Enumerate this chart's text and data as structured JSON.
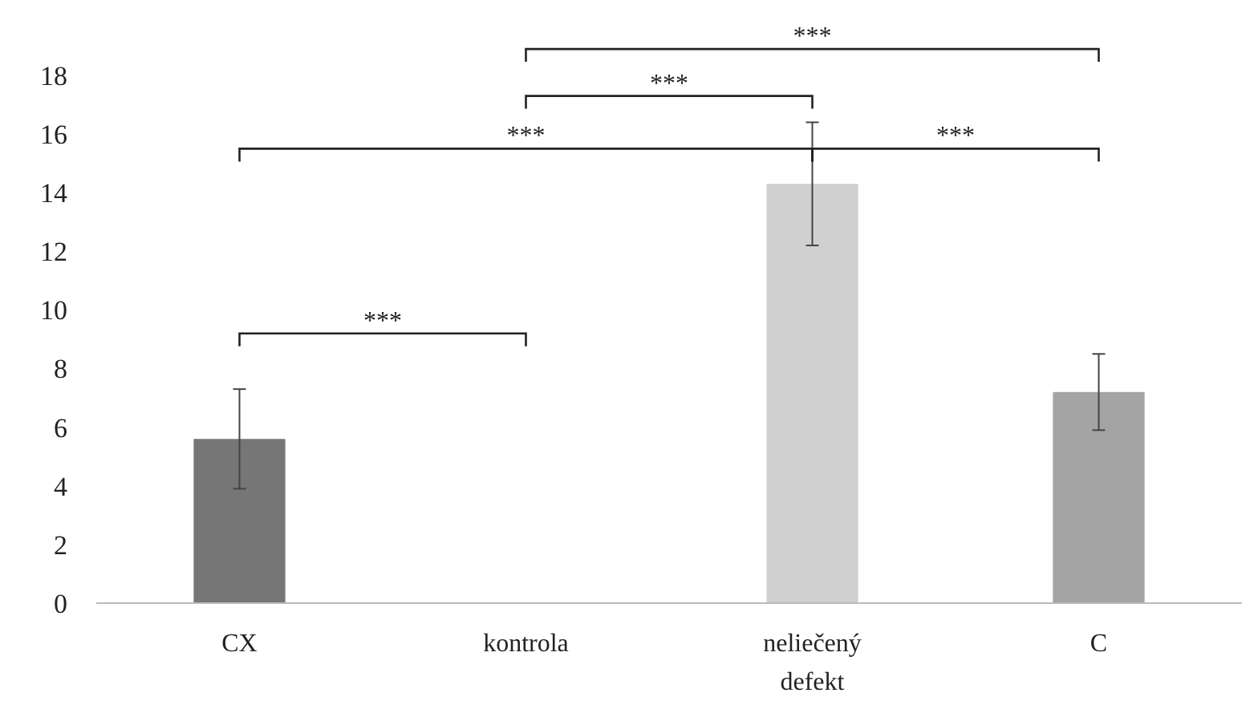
{
  "chart_data": {
    "type": "bar",
    "categories": [
      "CX",
      "kontrola",
      "neliečený defekt",
      "C"
    ],
    "values": [
      5.6,
      0,
      14.3,
      7.2
    ],
    "errors": [
      1.7,
      null,
      2.1,
      1.3
    ],
    "colors": [
      "#767676",
      "#767676",
      "#d0d0d0",
      "#a4a4a4"
    ],
    "ylim": [
      0,
      18
    ],
    "yticks": [
      0,
      2,
      4,
      6,
      8,
      10,
      12,
      14,
      16,
      18
    ],
    "grid": false,
    "annotations": [
      "***",
      "***",
      "***",
      "***",
      "***"
    ]
  }
}
